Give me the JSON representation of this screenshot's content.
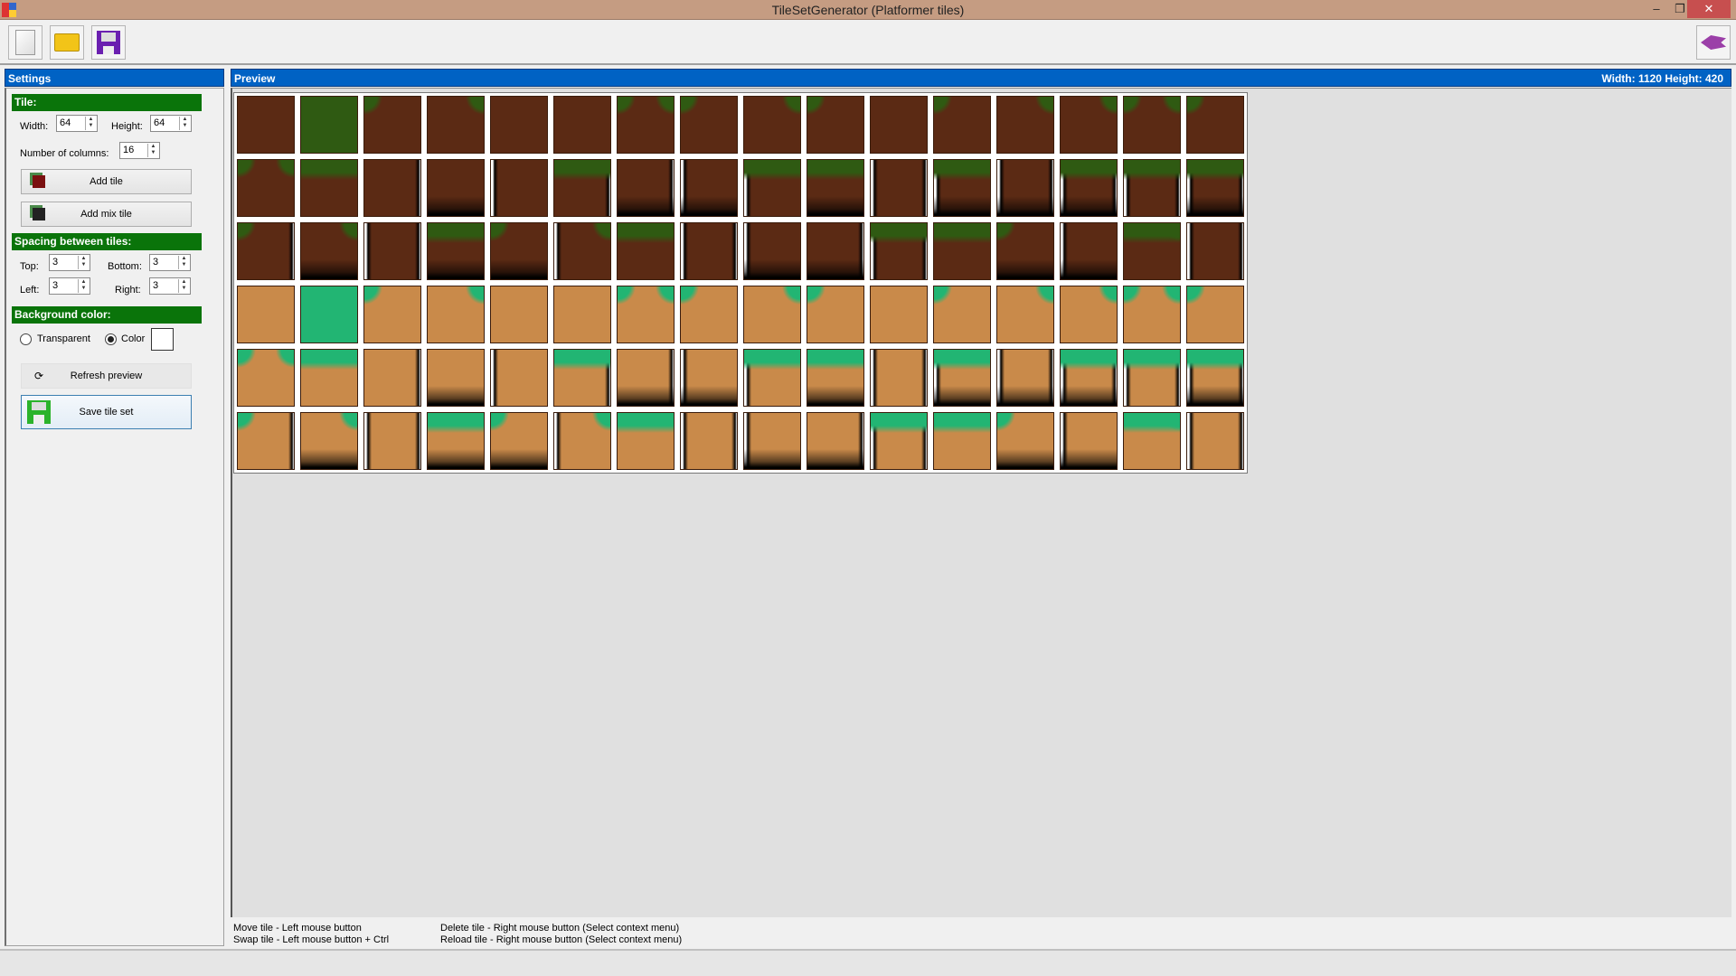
{
  "window": {
    "title": "TileSetGenerator (Platformer tiles)",
    "minimize": "–",
    "restore": "❐",
    "close": "✕"
  },
  "toolbar": {
    "items": [
      {
        "name": "new-file-icon"
      },
      {
        "name": "open-folder-icon"
      },
      {
        "name": "save-disk-icon"
      }
    ],
    "right": "puzzle-piece-icon"
  },
  "settings": {
    "header": "Settings",
    "tile": {
      "header": "Tile:",
      "width_label": "Width:",
      "width": "64",
      "height_label": "Height:",
      "height": "64",
      "columns_label": "Number of columns:",
      "columns": "16",
      "add_tile": "Add tile",
      "add_mix_tile": "Add mix tile"
    },
    "spacing": {
      "header": "Spacing between tiles:",
      "top_label": "Top:",
      "top": "3",
      "bottom_label": "Bottom:",
      "bottom": "3",
      "left_label": "Left:",
      "left": "3",
      "right_label": "Right:",
      "right": "3"
    },
    "background": {
      "header": "Background color:",
      "transparent": "Transparent",
      "color": "Color",
      "selected": "Color",
      "swatch": "#ffffff"
    },
    "refresh": "Refresh preview",
    "save": "Save tile set"
  },
  "preview": {
    "header": "Preview",
    "size": "Width: 1120  Height: 420",
    "columns": 16,
    "rows": 6,
    "palette": {
      "dirt": "#5b2a14",
      "grass_dark": "#2f5a12",
      "sand": "#c98a4a",
      "grass_bright": "#22b573"
    }
  },
  "help": {
    "move": "Move tile - Left mouse button",
    "swap": "Swap tile - Left mouse button + Ctrl",
    "delete": "Delete tile - Right mouse button (Select context menu)",
    "reload": "Reload tile - Right mouse button (Select context menu)"
  }
}
